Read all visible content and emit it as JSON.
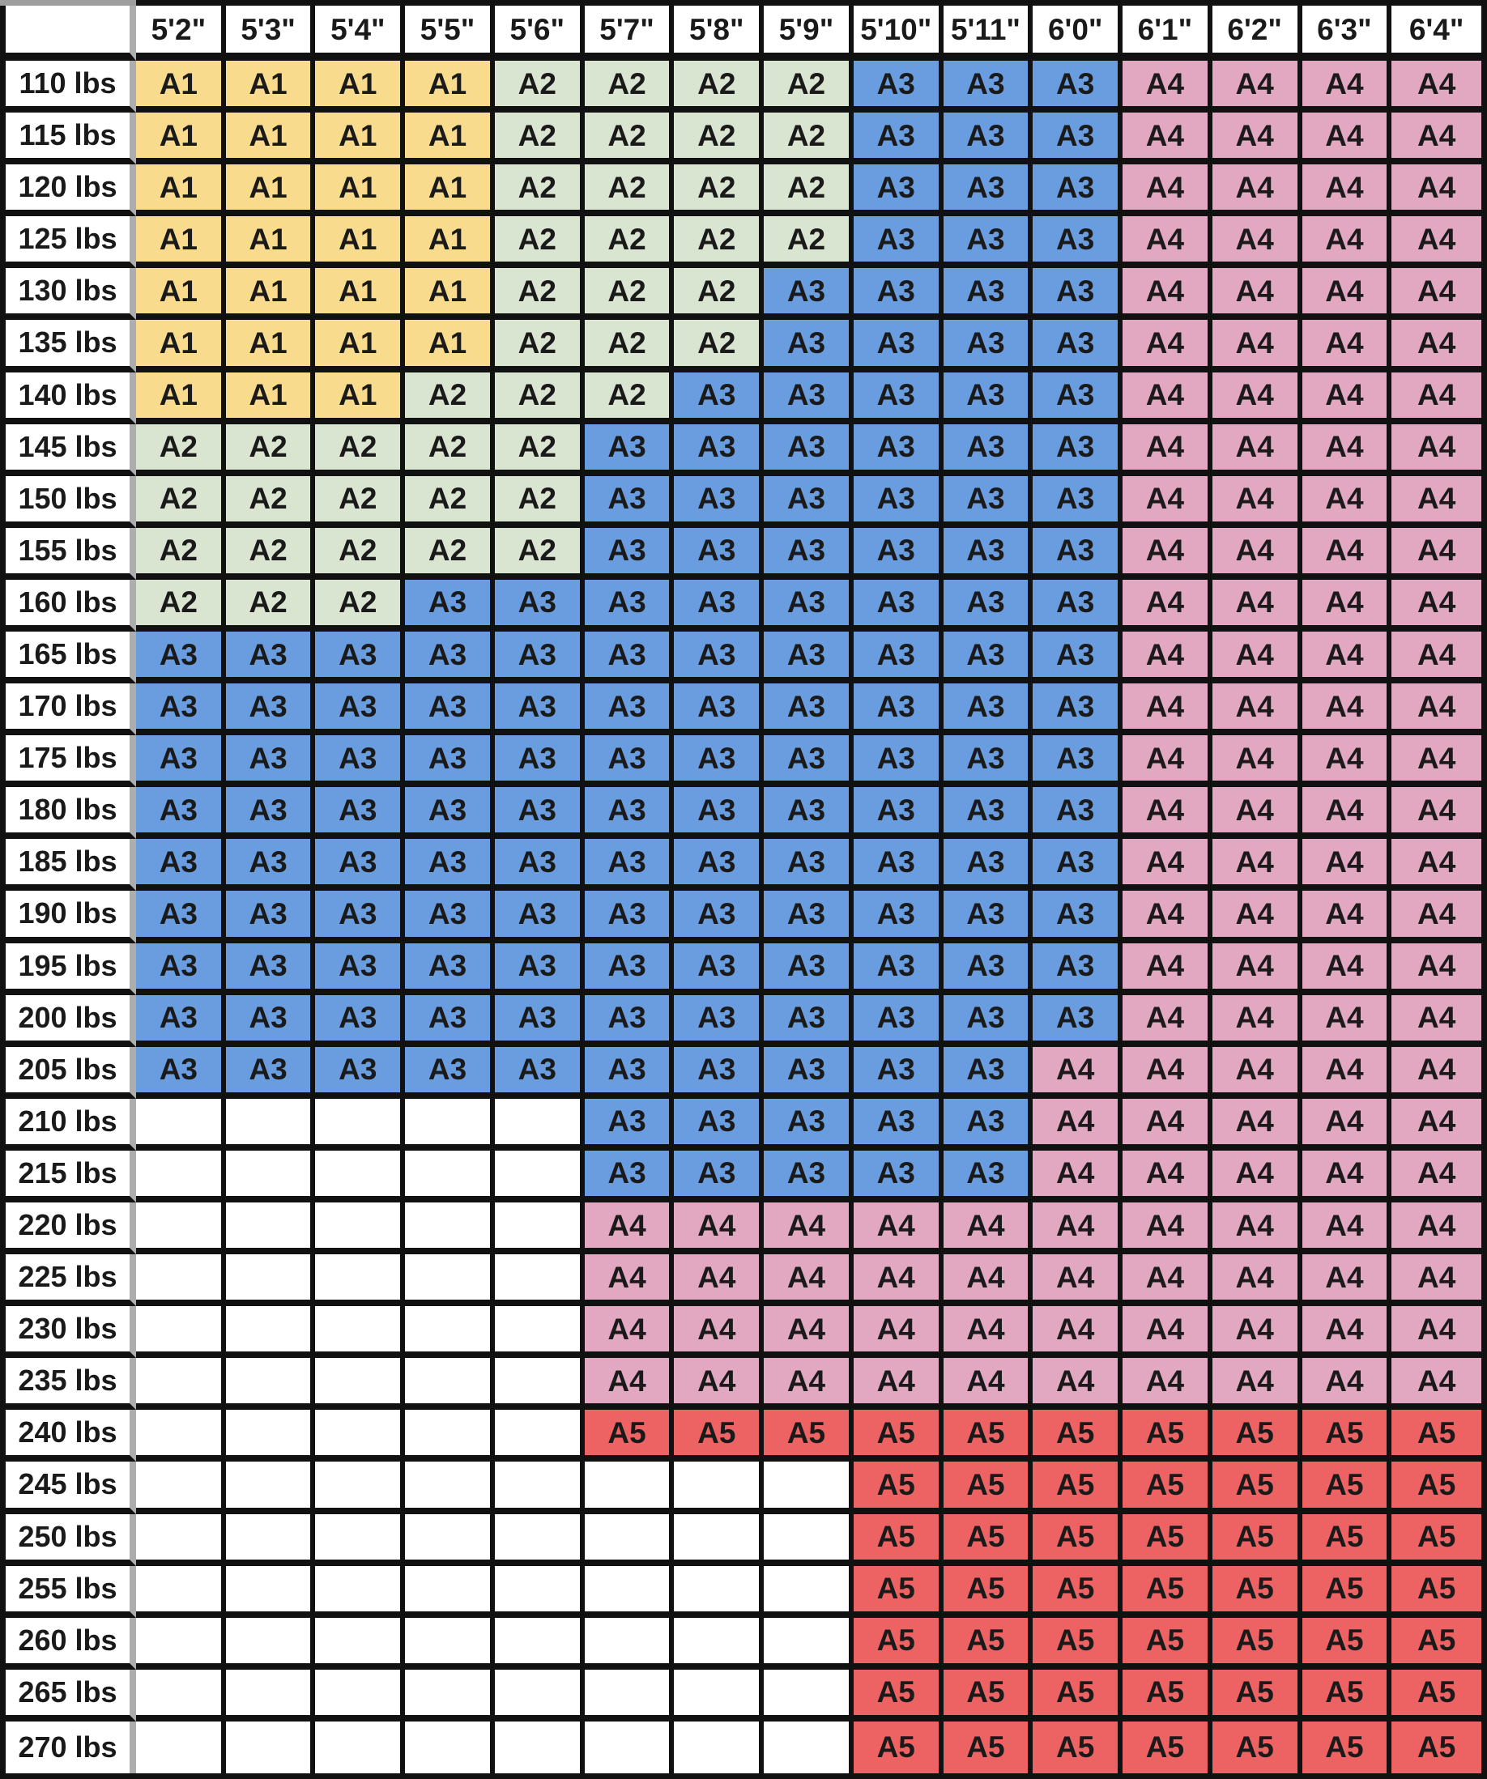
{
  "chart_data": {
    "type": "table",
    "corner_label": "",
    "height_columns": [
      "5'2\"",
      "5'3\"",
      "5'4\"",
      "5'5\"",
      "5'6\"",
      "5'7\"",
      "5'8\"",
      "5'9\"",
      "5'10\"",
      "5'11\"",
      "6'0\"",
      "6'1\"",
      "6'2\"",
      "6'3\"",
      "6'4\""
    ],
    "weight_rows": [
      "110 lbs",
      "115 lbs",
      "120 lbs",
      "125 lbs",
      "130 lbs",
      "135 lbs",
      "140 lbs",
      "145 lbs",
      "150 lbs",
      "155 lbs",
      "160 lbs",
      "165 lbs",
      "170 lbs",
      "175 lbs",
      "180 lbs",
      "185 lbs",
      "190 lbs",
      "195 lbs",
      "200 lbs",
      "205 lbs",
      "210 lbs",
      "215 lbs",
      "220 lbs",
      "225 lbs",
      "230 lbs",
      "235 lbs",
      "240 lbs",
      "245 lbs",
      "250 lbs",
      "255 lbs",
      "260 lbs",
      "265 lbs",
      "270 lbs"
    ],
    "sizes": [
      [
        "A1",
        "A1",
        "A1",
        "A1",
        "A2",
        "A2",
        "A2",
        "A2",
        "A3",
        "A3",
        "A3",
        "A4",
        "A4",
        "A4",
        "A4"
      ],
      [
        "A1",
        "A1",
        "A1",
        "A1",
        "A2",
        "A2",
        "A2",
        "A2",
        "A3",
        "A3",
        "A3",
        "A4",
        "A4",
        "A4",
        "A4"
      ],
      [
        "A1",
        "A1",
        "A1",
        "A1",
        "A2",
        "A2",
        "A2",
        "A2",
        "A3",
        "A3",
        "A3",
        "A4",
        "A4",
        "A4",
        "A4"
      ],
      [
        "A1",
        "A1",
        "A1",
        "A1",
        "A2",
        "A2",
        "A2",
        "A2",
        "A3",
        "A3",
        "A3",
        "A4",
        "A4",
        "A4",
        "A4"
      ],
      [
        "A1",
        "A1",
        "A1",
        "A1",
        "A2",
        "A2",
        "A2",
        "A3",
        "A3",
        "A3",
        "A3",
        "A4",
        "A4",
        "A4",
        "A4"
      ],
      [
        "A1",
        "A1",
        "A1",
        "A1",
        "A2",
        "A2",
        "A2",
        "A3",
        "A3",
        "A3",
        "A3",
        "A4",
        "A4",
        "A4",
        "A4"
      ],
      [
        "A1",
        "A1",
        "A1",
        "A2",
        "A2",
        "A2",
        "A3",
        "A3",
        "A3",
        "A3",
        "A3",
        "A4",
        "A4",
        "A4",
        "A4"
      ],
      [
        "A2",
        "A2",
        "A2",
        "A2",
        "A2",
        "A3",
        "A3",
        "A3",
        "A3",
        "A3",
        "A3",
        "A4",
        "A4",
        "A4",
        "A4"
      ],
      [
        "A2",
        "A2",
        "A2",
        "A2",
        "A2",
        "A3",
        "A3",
        "A3",
        "A3",
        "A3",
        "A3",
        "A4",
        "A4",
        "A4",
        "A4"
      ],
      [
        "A2",
        "A2",
        "A2",
        "A2",
        "A2",
        "A3",
        "A3",
        "A3",
        "A3",
        "A3",
        "A3",
        "A4",
        "A4",
        "A4",
        "A4"
      ],
      [
        "A2",
        "A2",
        "A2",
        "A3",
        "A3",
        "A3",
        "A3",
        "A3",
        "A3",
        "A3",
        "A3",
        "A4",
        "A4",
        "A4",
        "A4"
      ],
      [
        "A3",
        "A3",
        "A3",
        "A3",
        "A3",
        "A3",
        "A3",
        "A3",
        "A3",
        "A3",
        "A3",
        "A4",
        "A4",
        "A4",
        "A4"
      ],
      [
        "A3",
        "A3",
        "A3",
        "A3",
        "A3",
        "A3",
        "A3",
        "A3",
        "A3",
        "A3",
        "A3",
        "A4",
        "A4",
        "A4",
        "A4"
      ],
      [
        "A3",
        "A3",
        "A3",
        "A3",
        "A3",
        "A3",
        "A3",
        "A3",
        "A3",
        "A3",
        "A3",
        "A4",
        "A4",
        "A4",
        "A4"
      ],
      [
        "A3",
        "A3",
        "A3",
        "A3",
        "A3",
        "A3",
        "A3",
        "A3",
        "A3",
        "A3",
        "A3",
        "A4",
        "A4",
        "A4",
        "A4"
      ],
      [
        "A3",
        "A3",
        "A3",
        "A3",
        "A3",
        "A3",
        "A3",
        "A3",
        "A3",
        "A3",
        "A3",
        "A4",
        "A4",
        "A4",
        "A4"
      ],
      [
        "A3",
        "A3",
        "A3",
        "A3",
        "A3",
        "A3",
        "A3",
        "A3",
        "A3",
        "A3",
        "A3",
        "A4",
        "A4",
        "A4",
        "A4"
      ],
      [
        "A3",
        "A3",
        "A3",
        "A3",
        "A3",
        "A3",
        "A3",
        "A3",
        "A3",
        "A3",
        "A3",
        "A4",
        "A4",
        "A4",
        "A4"
      ],
      [
        "A3",
        "A3",
        "A3",
        "A3",
        "A3",
        "A3",
        "A3",
        "A3",
        "A3",
        "A3",
        "A3",
        "A4",
        "A4",
        "A4",
        "A4"
      ],
      [
        "A3",
        "A3",
        "A3",
        "A3",
        "A3",
        "A3",
        "A3",
        "A3",
        "A3",
        "A3",
        "A4",
        "A4",
        "A4",
        "A4",
        "A4"
      ],
      [
        "",
        "",
        "",
        "",
        "",
        "A3",
        "A3",
        "A3",
        "A3",
        "A3",
        "A4",
        "A4",
        "A4",
        "A4",
        "A4"
      ],
      [
        "",
        "",
        "",
        "",
        "",
        "A3",
        "A3",
        "A3",
        "A3",
        "A3",
        "A4",
        "A4",
        "A4",
        "A4",
        "A4"
      ],
      [
        "",
        "",
        "",
        "",
        "",
        "A4",
        "A4",
        "A4",
        "A4",
        "A4",
        "A4",
        "A4",
        "A4",
        "A4",
        "A4"
      ],
      [
        "",
        "",
        "",
        "",
        "",
        "A4",
        "A4",
        "A4",
        "A4",
        "A4",
        "A4",
        "A4",
        "A4",
        "A4",
        "A4"
      ],
      [
        "",
        "",
        "",
        "",
        "",
        "A4",
        "A4",
        "A4",
        "A4",
        "A4",
        "A4",
        "A4",
        "A4",
        "A4",
        "A4"
      ],
      [
        "",
        "",
        "",
        "",
        "",
        "A4",
        "A4",
        "A4",
        "A4",
        "A4",
        "A4",
        "A4",
        "A4",
        "A4",
        "A4"
      ],
      [
        "",
        "",
        "",
        "",
        "",
        "A5",
        "A5",
        "A5",
        "A5",
        "A5",
        "A5",
        "A5",
        "A5",
        "A5",
        "A5"
      ],
      [
        "",
        "",
        "",
        "",
        "",
        "",
        "",
        "",
        "A5",
        "A5",
        "A5",
        "A5",
        "A5",
        "A5",
        "A5"
      ],
      [
        "",
        "",
        "",
        "",
        "",
        "",
        "",
        "",
        "A5",
        "A5",
        "A5",
        "A5",
        "A5",
        "A5",
        "A5"
      ],
      [
        "",
        "",
        "",
        "",
        "",
        "",
        "",
        "",
        "A5",
        "A5",
        "A5",
        "A5",
        "A5",
        "A5",
        "A5"
      ],
      [
        "",
        "",
        "",
        "",
        "",
        "",
        "",
        "",
        "A5",
        "A5",
        "A5",
        "A5",
        "A5",
        "A5",
        "A5"
      ],
      [
        "",
        "",
        "",
        "",
        "",
        "",
        "",
        "",
        "A5",
        "A5",
        "A5",
        "A5",
        "A5",
        "A5",
        "A5"
      ],
      [
        "",
        "",
        "",
        "",
        "",
        "",
        "",
        "",
        "A5",
        "A5",
        "A5",
        "A5",
        "A5",
        "A5",
        "A5"
      ]
    ],
    "size_colors": {
      "A1": "#F8DB8C",
      "A2": "#D9E4D1",
      "A3": "#6A9DDF",
      "A4": "#E2A7C1",
      "A5": "#ED6262",
      "": "#FFFFFF"
    },
    "grid_line_color": "#111111",
    "label_divider_color": "#ADADAD",
    "background_color": "#FFFFFF",
    "text_color": "#1A1A1A",
    "legend_position": "none",
    "grid": true
  }
}
